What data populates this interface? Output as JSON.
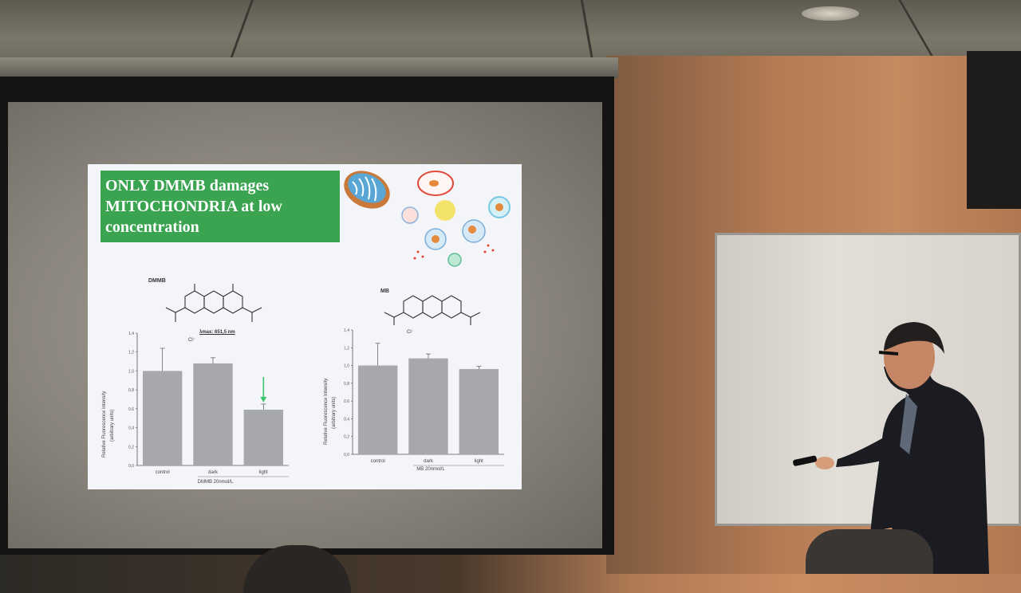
{
  "slide": {
    "title_lines": [
      "ONLY DMMB damages",
      "MITOCHONDRIA  at low",
      "concentration"
    ],
    "title_bg": "#3aa451",
    "left_panel": {
      "compound": "DMMB",
      "wavelength_label": "λmax: 651,5 nm",
      "counter_ion": "Cl⁻",
      "ylabel_line1": "Relative Fluorescence Intensity",
      "ylabel_line2": "(arbitrary units)",
      "xlabel": "DMMB 20nmol/L"
    },
    "right_panel": {
      "compound": "MB",
      "counter_ion": "Cl⁻",
      "ylabel_line1": "Relative Fluorescence Intensity",
      "ylabel_line2": "(arbitrary units)",
      "xlabel": "MB 20nmol/L"
    }
  },
  "chart_data": [
    {
      "type": "bar",
      "categories": [
        "control",
        "dark",
        "light"
      ],
      "values": [
        1.0,
        1.08,
        0.59
      ],
      "errors": [
        0.24,
        0.06,
        0.06
      ],
      "ylim": [
        0,
        1.4
      ],
      "yticks": [
        "0,0",
        "0,2",
        "0,4",
        "0,6",
        "0,8",
        "1,0",
        "1,2",
        "1,4"
      ],
      "ylabel": "Relative Fluorescence Intensity (arbitrary units)",
      "xlabel": "DMMB 20nmol/L",
      "bar_color": "#a6a8ad",
      "annotation_color": "#3cc46e"
    },
    {
      "type": "bar",
      "categories": [
        "control",
        "dark",
        "light"
      ],
      "values": [
        1.0,
        1.08,
        0.96
      ],
      "errors": [
        0.25,
        0.05,
        0.03
      ],
      "ylim": [
        0,
        1.4
      ],
      "yticks": [
        "0,0",
        "0,2",
        "0,4",
        "0,6",
        "0,8",
        "1,0",
        "1,2",
        "1,4"
      ],
      "ylabel": "Relative Fluorescence Intensity (arbitrary units)",
      "xlabel": "MB 20nmol/L",
      "bar_color": "#a6a8ad"
    }
  ]
}
